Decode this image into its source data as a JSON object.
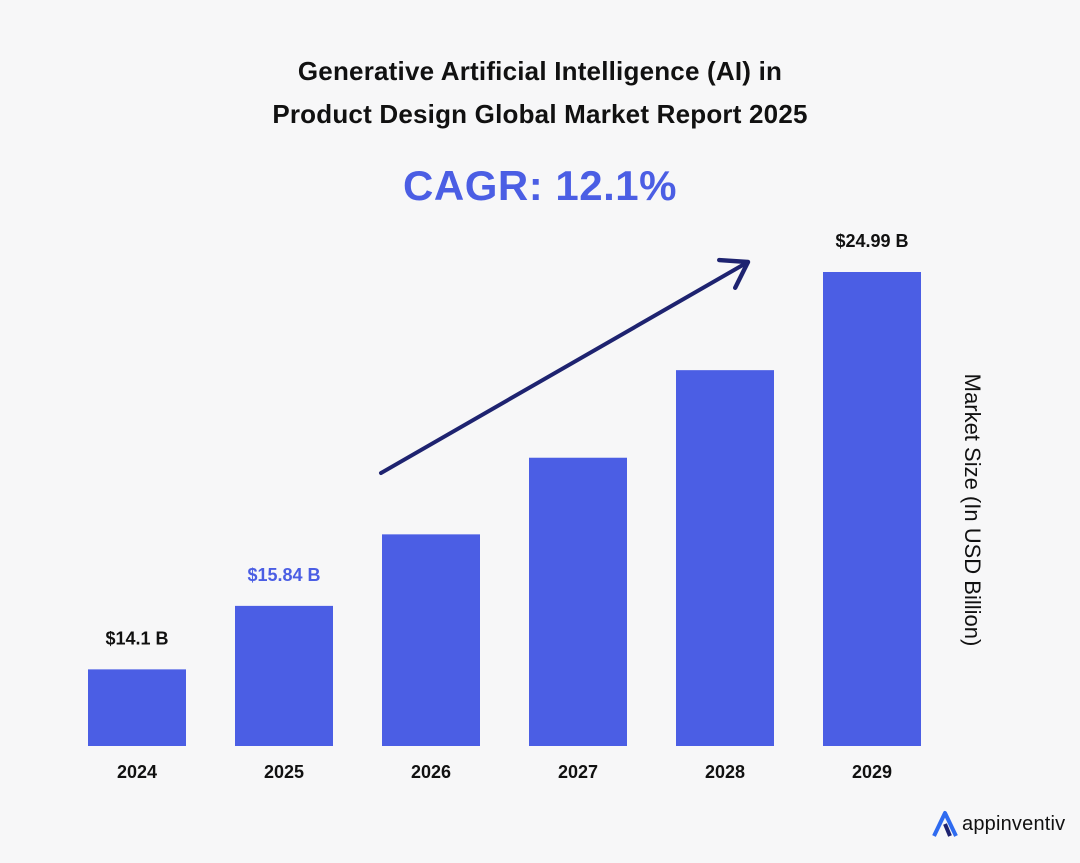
{
  "title_lines": [
    "Generative Artificial Intelligence (AI) in",
    "Product Design Global Market Report 2025"
  ],
  "cagr_label": "CAGR: 12.1%",
  "brand": {
    "name": "appinventiv",
    "icon": "appinventiv-logo-icon",
    "accent": "#2f6bf0"
  },
  "colors": {
    "bar": "#4b5ee4",
    "arrow": "#1e2370",
    "highlight_label": "#4b5ee4",
    "text": "#111111",
    "background": "#f7f7f8"
  },
  "chart_data": {
    "type": "bar",
    "categories": [
      "2024",
      "2025",
      "2026",
      "2027",
      "2028",
      "2029"
    ],
    "values": [
      14.1,
      15.84,
      17.8,
      19.9,
      22.3,
      24.99
    ],
    "data_labels": [
      {
        "index": 0,
        "text": "$14.1 B",
        "highlight": false
      },
      {
        "index": 1,
        "text": "$15.84 B",
        "highlight": true
      },
      {
        "index": 5,
        "text": "$24.99 B",
        "highlight": false
      }
    ],
    "title": "Generative Artificial Intelligence (AI) in Product Design Global Market Report 2025",
    "xlabel": "",
    "ylabel": "Market Size (In USD Billion)",
    "ylim": [
      12.0,
      26.0
    ],
    "grid": false,
    "legend": "none",
    "annotation": "trend-arrow"
  }
}
